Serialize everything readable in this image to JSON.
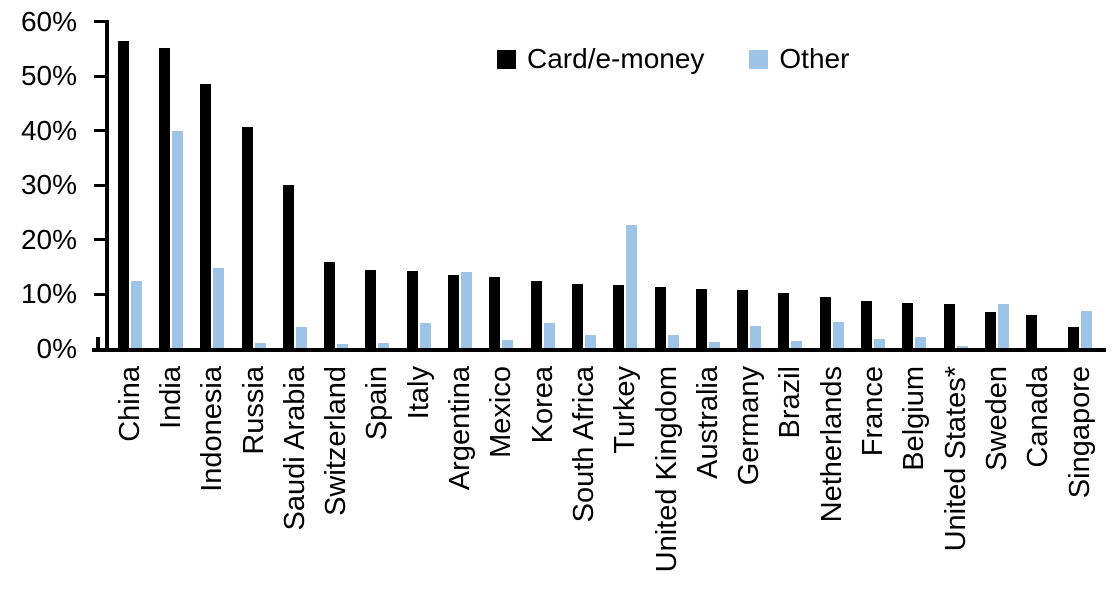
{
  "chart_data": {
    "type": "bar",
    "title": "",
    "xlabel": "",
    "ylabel": "",
    "ylim": [
      0,
      60
    ],
    "ytick_step": 10,
    "ytick_labels": [
      "0%",
      "10%",
      "20%",
      "30%",
      "40%",
      "50%",
      "60%"
    ],
    "grid": false,
    "legend_position": "top-center",
    "categories": [
      "China",
      "India",
      "Indonesia",
      "Russia",
      "Saudi Arabia",
      "Switzerland",
      "Spain",
      "Italy",
      "Argentina",
      "Mexico",
      "Korea",
      "South Africa",
      "Turkey",
      "United Kingdom",
      "Australia",
      "Germany",
      "Brazil",
      "Netherlands",
      "France",
      "Belgium",
      "United States*",
      "Sweden",
      "Canada",
      "Singapore"
    ],
    "series": [
      {
        "name": "Card/e-money",
        "color": "#000000",
        "values": [
          56.3,
          55.0,
          48.4,
          40.6,
          29.9,
          15.7,
          14.3,
          14.2,
          13.4,
          13.0,
          12.3,
          11.7,
          11.6,
          11.1,
          10.9,
          10.6,
          10.0,
          9.3,
          8.7,
          8.3,
          8.0,
          6.6,
          6.0,
          3.9
        ]
      },
      {
        "name": "Other",
        "color": "#9DC3E6",
        "values": [
          12.3,
          39.8,
          14.6,
          1.0,
          3.9,
          0.8,
          1.0,
          4.6,
          13.9,
          1.4,
          4.6,
          2.4,
          22.6,
          2.3,
          1.1,
          4.0,
          1.2,
          4.8,
          1.6,
          2.1,
          0.3,
          8.1,
          0.0,
          6.7
        ]
      }
    ]
  }
}
